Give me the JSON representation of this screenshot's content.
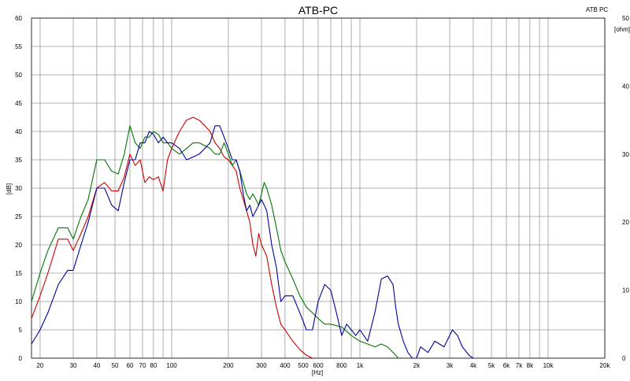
{
  "chart_data": {
    "type": "line",
    "title": "ATB-PC",
    "top_right_label": "ATB PC",
    "xlabel": "[Hz]",
    "ylabel": "[dB]",
    "y2label": "[ohm]",
    "xscale": "log",
    "xlim": [
      18,
      20000
    ],
    "ylim": [
      0,
      60
    ],
    "y2lim": [
      0,
      50
    ],
    "grid": true,
    "x_ticks": [
      {
        "v": 20,
        "label": "20"
      },
      {
        "v": 30,
        "label": "30"
      },
      {
        "v": 40,
        "label": "40"
      },
      {
        "v": 50,
        "label": "50"
      },
      {
        "v": 60,
        "label": "60"
      },
      {
        "v": 70,
        "label": "70"
      },
      {
        "v": 80,
        "label": "80"
      },
      {
        "v": 100,
        "label": "100"
      },
      {
        "v": 200,
        "label": "200"
      },
      {
        "v": 300,
        "label": "300"
      },
      {
        "v": 400,
        "label": "400"
      },
      {
        "v": 500,
        "label": "500"
      },
      {
        "v": 600,
        "label": "600"
      },
      {
        "v": 800,
        "label": "800"
      },
      {
        "v": 1000,
        "label": "1k"
      },
      {
        "v": 2000,
        "label": "2k"
      },
      {
        "v": 3000,
        "label": "3k"
      },
      {
        "v": 4000,
        "label": "4k"
      },
      {
        "v": 5000,
        "label": "5k"
      },
      {
        "v": 6000,
        "label": "6k"
      },
      {
        "v": 7000,
        "label": "7k"
      },
      {
        "v": 8000,
        "label": "8k"
      },
      {
        "v": 10000,
        "label": "10k"
      },
      {
        "v": 20000,
        "label": "20k"
      }
    ],
    "y_ticks": [
      "0",
      "5",
      "10",
      "15",
      "20",
      "25",
      "30",
      "35",
      "40",
      "45",
      "50",
      "55",
      "60"
    ],
    "y_tick_values": [
      0,
      5,
      10,
      15,
      20,
      25,
      30,
      35,
      40,
      45,
      50,
      55,
      60
    ],
    "y2_ticks": [
      "0",
      "10",
      "20",
      "30",
      "40",
      "50"
    ],
    "y2_tick_values": [
      0,
      10,
      20,
      30,
      40,
      50
    ],
    "series": [
      {
        "color": "#cc0000",
        "x": [
          18,
          20,
          22,
          25,
          28,
          30,
          33,
          36,
          40,
          44,
          48,
          52,
          56,
          60,
          64,
          68,
          72,
          76,
          80,
          85,
          90,
          95,
          100,
          110,
          120,
          130,
          140,
          150,
          160,
          170,
          180,
          190,
          200,
          210,
          220,
          230,
          240,
          250,
          260,
          270,
          280,
          290,
          300,
          310,
          320,
          340,
          360,
          380,
          400,
          440,
          480,
          520,
          560
        ],
        "y": [
          7,
          11,
          15,
          21,
          21,
          19,
          22,
          25,
          30,
          31,
          29.5,
          29.5,
          32,
          36,
          34,
          35,
          31,
          32,
          31.5,
          32,
          29.5,
          35,
          37,
          40,
          42,
          42.5,
          42,
          41,
          40,
          38,
          37,
          35.5,
          35,
          34,
          33,
          30,
          28,
          26,
          24,
          20,
          18,
          22,
          20,
          19,
          18,
          13,
          9,
          6,
          5,
          3,
          1.5,
          0.5,
          0
        ]
      },
      {
        "color": "#007700",
        "x": [
          18,
          20,
          22,
          25,
          28,
          30,
          33,
          36,
          40,
          44,
          48,
          52,
          56,
          60,
          64,
          68,
          72,
          76,
          80,
          85,
          90,
          95,
          100,
          110,
          120,
          130,
          140,
          150,
          160,
          170,
          180,
          190,
          200,
          210,
          220,
          230,
          240,
          250,
          260,
          270,
          280,
          290,
          300,
          310,
          320,
          340,
          360,
          380,
          400,
          440,
          480,
          520,
          560,
          600,
          650,
          700,
          800,
          900,
          1000,
          1100,
          1200,
          1300,
          1400,
          1500,
          1600
        ],
        "y": [
          10,
          15,
          19,
          23,
          23,
          21,
          25,
          28,
          35,
          35,
          33,
          32.5,
          36,
          41,
          38,
          37,
          39,
          39,
          40,
          39.5,
          38,
          38,
          37,
          36,
          37,
          38,
          38,
          37.5,
          37,
          36,
          36,
          38,
          36,
          34,
          35,
          33,
          31,
          29,
          28,
          29,
          28,
          27,
          29,
          31,
          30,
          27,
          23,
          19,
          17,
          14,
          11,
          9,
          8,
          7,
          6,
          6,
          5.5,
          4,
          3,
          2.5,
          2,
          2.5,
          2,
          1,
          0
        ]
      },
      {
        "color": "#000099",
        "x": [
          18,
          20,
          22,
          25,
          28,
          30,
          33,
          36,
          40,
          44,
          48,
          52,
          56,
          60,
          64,
          68,
          72,
          76,
          80,
          85,
          90,
          95,
          100,
          110,
          120,
          130,
          140,
          150,
          160,
          170,
          180,
          190,
          200,
          210,
          220,
          230,
          240,
          250,
          260,
          270,
          280,
          290,
          300,
          310,
          320,
          340,
          360,
          380,
          400,
          440,
          480,
          520,
          560,
          600,
          650,
          700,
          750,
          800,
          850,
          900,
          950,
          1000,
          1100,
          1200,
          1300,
          1400,
          1500,
          1550,
          1600,
          1700,
          1800,
          1900,
          2000,
          2100,
          2300,
          2500,
          2800,
          3100,
          3300,
          3500,
          3800,
          4000
        ],
        "y": [
          2.5,
          5,
          8,
          13,
          15.5,
          15.5,
          20,
          24,
          30,
          30,
          27,
          26,
          31,
          35,
          35,
          38,
          38,
          40,
          39.5,
          38,
          39,
          38,
          38,
          37,
          35,
          35.5,
          36,
          37,
          38,
          41,
          41,
          39,
          37,
          35,
          35,
          33,
          29,
          26,
          27,
          25,
          26,
          27,
          28,
          27,
          26,
          20,
          16,
          10,
          11,
          11,
          8,
          5,
          5,
          10,
          13,
          12,
          8,
          4,
          6,
          5,
          4,
          5,
          3,
          8,
          14,
          14.5,
          13,
          9,
          6,
          3,
          1,
          0,
          0,
          2,
          1,
          3,
          2,
          5,
          4,
          2,
          0.5,
          0
        ]
      }
    ]
  }
}
